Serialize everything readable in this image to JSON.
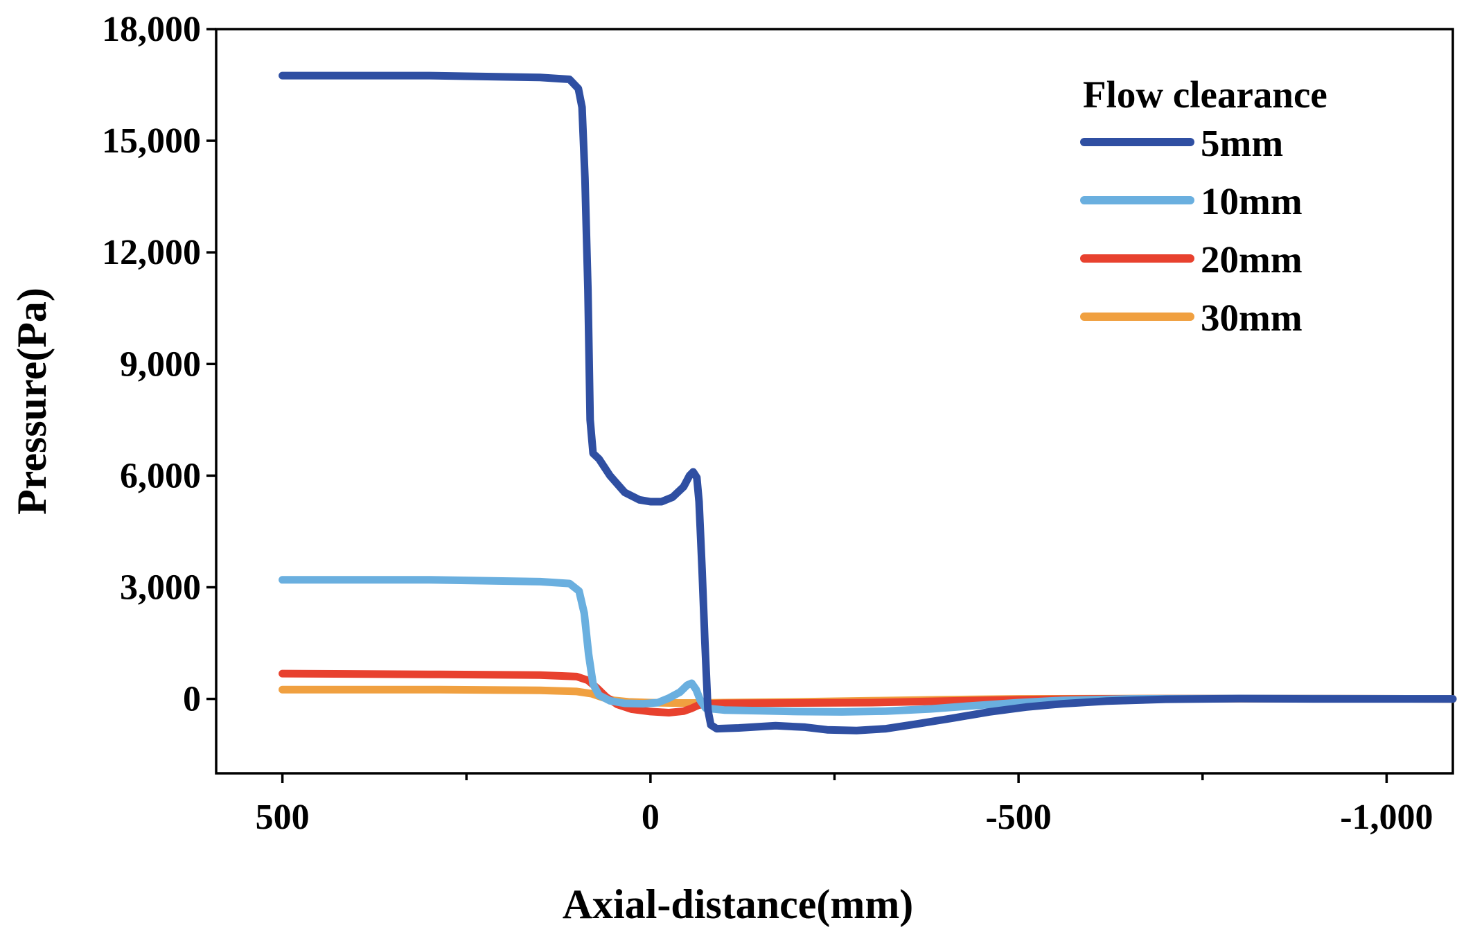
{
  "chart_data": {
    "type": "line",
    "xlabel": "Axial-distance(mm)",
    "ylabel": "Pressure(Pa)",
    "xlim": [
      590,
      -1090
    ],
    "ylim": [
      -2000,
      18000
    ],
    "x_reversed": true,
    "xticks": [
      500,
      0,
      -500,
      -1000
    ],
    "xtick_labels": [
      "500",
      "0",
      "-500",
      "-1,000"
    ],
    "x_minor_ticks": [
      250,
      -250,
      -750
    ],
    "yticks": [
      0,
      3000,
      6000,
      9000,
      12000,
      15000,
      18000
    ],
    "ytick_labels": [
      "0",
      "3,000",
      "6,000",
      "9,000",
      "12,000",
      "15,000",
      "18,000"
    ],
    "grid": false,
    "legend": {
      "title": "Flow clearance",
      "position": "top-right"
    },
    "series": [
      {
        "name": "5mm",
        "color": "#2f4fa2",
        "points": [
          [
            500,
            16750
          ],
          [
            300,
            16750
          ],
          [
            150,
            16700
          ],
          [
            110,
            16650
          ],
          [
            98,
            16400
          ],
          [
            93,
            15900
          ],
          [
            89,
            14000
          ],
          [
            85,
            11000
          ],
          [
            82,
            7500
          ],
          [
            78,
            6600
          ],
          [
            70,
            6450
          ],
          [
            55,
            6000
          ],
          [
            35,
            5550
          ],
          [
            15,
            5350
          ],
          [
            0,
            5300
          ],
          [
            -15,
            5300
          ],
          [
            -30,
            5420
          ],
          [
            -45,
            5700
          ],
          [
            -53,
            6000
          ],
          [
            -58,
            6100
          ],
          [
            -63,
            5950
          ],
          [
            -66,
            5300
          ],
          [
            -70,
            3500
          ],
          [
            -74,
            1500
          ],
          [
            -78,
            -300
          ],
          [
            -82,
            -700
          ],
          [
            -90,
            -800
          ],
          [
            -120,
            -780
          ],
          [
            -170,
            -720
          ],
          [
            -210,
            -760
          ],
          [
            -240,
            -830
          ],
          [
            -280,
            -850
          ],
          [
            -320,
            -800
          ],
          [
            -360,
            -680
          ],
          [
            -410,
            -520
          ],
          [
            -460,
            -350
          ],
          [
            -510,
            -220
          ],
          [
            -560,
            -130
          ],
          [
            -620,
            -60
          ],
          [
            -700,
            -10
          ],
          [
            -800,
            10
          ],
          [
            -900,
            0
          ],
          [
            -1000,
            0
          ],
          [
            -1090,
            0
          ]
        ]
      },
      {
        "name": "10mm",
        "color": "#6aafdf",
        "points": [
          [
            500,
            3200
          ],
          [
            300,
            3200
          ],
          [
            150,
            3150
          ],
          [
            110,
            3100
          ],
          [
            97,
            2900
          ],
          [
            90,
            2300
          ],
          [
            84,
            1200
          ],
          [
            78,
            400
          ],
          [
            70,
            100
          ],
          [
            55,
            -50
          ],
          [
            35,
            -120
          ],
          [
            10,
            -130
          ],
          [
            -10,
            -100
          ],
          [
            -25,
            20
          ],
          [
            -40,
            180
          ],
          [
            -50,
            370
          ],
          [
            -56,
            420
          ],
          [
            -62,
            250
          ],
          [
            -68,
            -50
          ],
          [
            -75,
            -250
          ],
          [
            -100,
            -300
          ],
          [
            -150,
            -320
          ],
          [
            -200,
            -340
          ],
          [
            -260,
            -350
          ],
          [
            -320,
            -330
          ],
          [
            -380,
            -270
          ],
          [
            -440,
            -180
          ],
          [
            -500,
            -100
          ],
          [
            -560,
            -40
          ],
          [
            -650,
            0
          ],
          [
            -800,
            10
          ],
          [
            -1090,
            0
          ]
        ]
      },
      {
        "name": "20mm",
        "color": "#e8412e",
        "points": [
          [
            500,
            680
          ],
          [
            300,
            660
          ],
          [
            150,
            640
          ],
          [
            100,
            600
          ],
          [
            85,
            500
          ],
          [
            72,
            280
          ],
          [
            60,
            50
          ],
          [
            45,
            -150
          ],
          [
            25,
            -280
          ],
          [
            0,
            -340
          ],
          [
            -25,
            -370
          ],
          [
            -45,
            -330
          ],
          [
            -55,
            -260
          ],
          [
            -65,
            -170
          ],
          [
            -78,
            -130
          ],
          [
            -100,
            -120
          ],
          [
            -200,
            -110
          ],
          [
            -300,
            -100
          ],
          [
            -400,
            -60
          ],
          [
            -500,
            -20
          ],
          [
            -600,
            0
          ],
          [
            -800,
            10
          ],
          [
            -1090,
            0
          ]
        ]
      },
      {
        "name": "30mm",
        "color": "#f0a040",
        "points": [
          [
            500,
            250
          ],
          [
            300,
            250
          ],
          [
            150,
            230
          ],
          [
            100,
            200
          ],
          [
            80,
            140
          ],
          [
            65,
            40
          ],
          [
            50,
            -40
          ],
          [
            30,
            -80
          ],
          [
            0,
            -100
          ],
          [
            -30,
            -110
          ],
          [
            -60,
            -110
          ],
          [
            -100,
            -100
          ],
          [
            -200,
            -80
          ],
          [
            -300,
            -50
          ],
          [
            -400,
            -20
          ],
          [
            -500,
            0
          ],
          [
            -700,
            10
          ],
          [
            -1090,
            0
          ]
        ]
      }
    ]
  }
}
